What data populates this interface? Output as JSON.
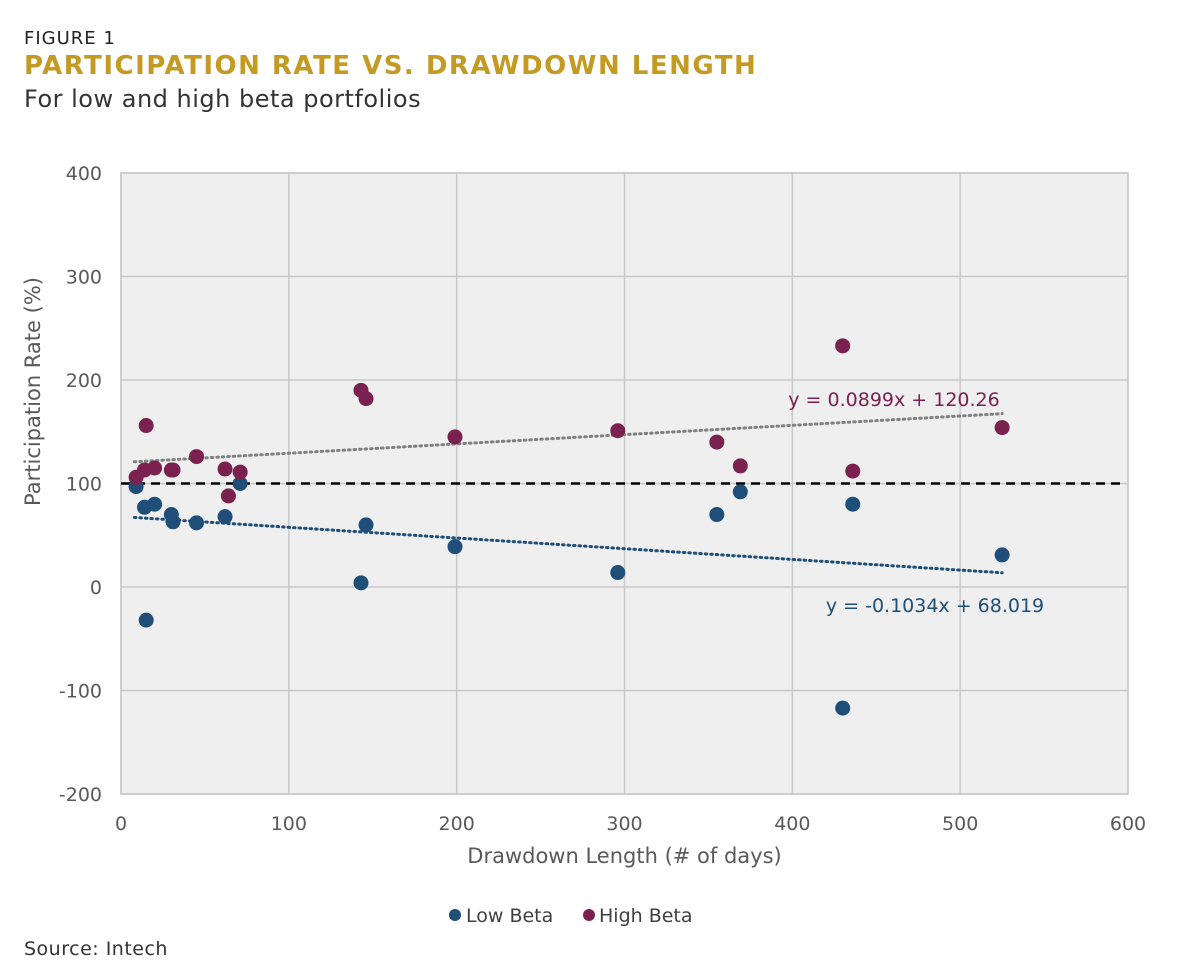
{
  "header": {
    "figure_label": "FIGURE 1",
    "title": "PARTICIPATION RATE VS. DRAWDOWN LENGTH",
    "subtitle": "For low and high beta portfolios"
  },
  "footer": {
    "source": "Source: Intech"
  },
  "colors": {
    "title": "#C49A22",
    "low_beta": "#1F4E79",
    "high_beta": "#7B2150",
    "trend_high": "#808080",
    "trend_low": "#1F4E79",
    "plot_bg": "#EFEFEF",
    "grid": "#C8C8C8",
    "reference": "#000000"
  },
  "chart_data": {
    "type": "scatter",
    "title": "PARTICIPATION RATE VS. DRAWDOWN LENGTH",
    "xlabel": "Drawdown Length (# of days)",
    "ylabel": "Participation Rate (%)",
    "xlim": [
      0,
      600
    ],
    "ylim": [
      -200,
      400
    ],
    "x_ticks": [
      0,
      100,
      200,
      300,
      400,
      500,
      600
    ],
    "y_ticks": [
      -200,
      -100,
      0,
      100,
      200,
      300,
      400
    ],
    "grid": true,
    "reference_line": {
      "y": 100,
      "style": "dashed"
    },
    "legend_position": "bottom",
    "series": [
      {
        "name": "Low Beta",
        "color": "#1F4E79",
        "points": [
          {
            "x": 9,
            "y": 97
          },
          {
            "x": 14,
            "y": 77
          },
          {
            "x": 15,
            "y": -32
          },
          {
            "x": 20,
            "y": 80
          },
          {
            "x": 30,
            "y": 70
          },
          {
            "x": 31,
            "y": 63
          },
          {
            "x": 45,
            "y": 62
          },
          {
            "x": 62,
            "y": 68
          },
          {
            "x": 71,
            "y": 100
          },
          {
            "x": 143,
            "y": 4
          },
          {
            "x": 146,
            "y": 60
          },
          {
            "x": 199,
            "y": 39
          },
          {
            "x": 296,
            "y": 14
          },
          {
            "x": 355,
            "y": 70
          },
          {
            "x": 369,
            "y": 92
          },
          {
            "x": 430,
            "y": -117
          },
          {
            "x": 436,
            "y": 80
          },
          {
            "x": 525,
            "y": 31
          }
        ],
        "trendline": {
          "slope": -0.1034,
          "intercept": 68.019,
          "x_range": [
            8,
            525
          ],
          "equation": "y = -0.1034x + 68.019"
        }
      },
      {
        "name": "High Beta",
        "color": "#7B2150",
        "points": [
          {
            "x": 9,
            "y": 106
          },
          {
            "x": 14,
            "y": 113
          },
          {
            "x": 15,
            "y": 156
          },
          {
            "x": 20,
            "y": 115
          },
          {
            "x": 30,
            "y": 113
          },
          {
            "x": 31,
            "y": 113
          },
          {
            "x": 45,
            "y": 126
          },
          {
            "x": 62,
            "y": 114
          },
          {
            "x": 64,
            "y": 88
          },
          {
            "x": 71,
            "y": 111
          },
          {
            "x": 143,
            "y": 190
          },
          {
            "x": 146,
            "y": 182
          },
          {
            "x": 199,
            "y": 145
          },
          {
            "x": 296,
            "y": 151
          },
          {
            "x": 355,
            "y": 140
          },
          {
            "x": 369,
            "y": 117
          },
          {
            "x": 430,
            "y": 233
          },
          {
            "x": 436,
            "y": 112
          },
          {
            "x": 525,
            "y": 154
          }
        ],
        "trendline": {
          "slope": 0.0899,
          "intercept": 120.26,
          "x_range": [
            8,
            525
          ],
          "equation": "y = 0.0899x + 120.26"
        }
      }
    ]
  }
}
